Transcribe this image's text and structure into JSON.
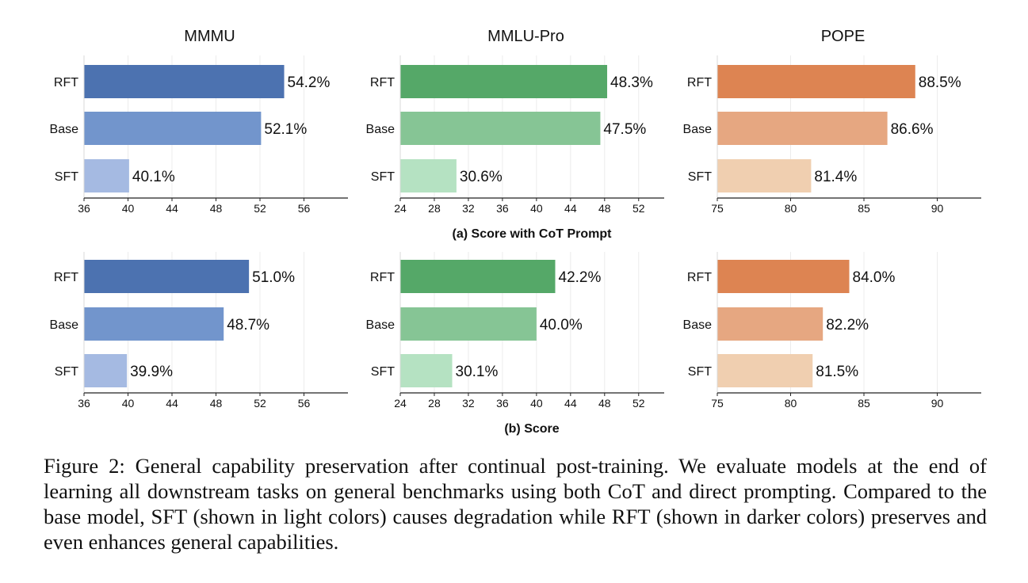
{
  "chart_data": [
    {
      "type": "bar",
      "orientation": "horizontal",
      "row": 0,
      "col": 0,
      "title": "MMMU",
      "categories": [
        "RFT",
        "Base",
        "SFT"
      ],
      "values": [
        54.2,
        52.1,
        40.1
      ],
      "value_labels": [
        "54.2%",
        "52.1%",
        "40.1%"
      ],
      "colors": [
        "#4c72b0",
        "#7295cc",
        "#a5bae2"
      ],
      "xlim": [
        36,
        60
      ],
      "xticks": [
        36,
        40,
        44,
        48,
        52,
        56
      ],
      "grid": "vertical"
    },
    {
      "type": "bar",
      "orientation": "horizontal",
      "row": 0,
      "col": 1,
      "title": "MMLU-Pro",
      "categories": [
        "RFT",
        "Base",
        "SFT"
      ],
      "values": [
        48.3,
        47.5,
        30.6
      ],
      "value_labels": [
        "48.3%",
        "47.5%",
        "30.6%"
      ],
      "colors": [
        "#55a868",
        "#86c595",
        "#b5e2c2"
      ],
      "xlim": [
        24,
        55
      ],
      "xticks": [
        24,
        28,
        32,
        36,
        40,
        44,
        48,
        52
      ],
      "grid": "vertical"
    },
    {
      "type": "bar",
      "orientation": "horizontal",
      "row": 0,
      "col": 2,
      "title": "POPE",
      "categories": [
        "RFT",
        "Base",
        "SFT"
      ],
      "values": [
        88.5,
        86.6,
        81.4
      ],
      "value_labels": [
        "88.5%",
        "86.6%",
        "81.4%"
      ],
      "colors": [
        "#dd8452",
        "#e6a781",
        "#f0cfb0"
      ],
      "xlim": [
        75,
        93
      ],
      "xticks": [
        75,
        80,
        85,
        90
      ],
      "grid": "vertical"
    },
    {
      "type": "bar",
      "orientation": "horizontal",
      "row": 1,
      "col": 0,
      "title": "",
      "categories": [
        "RFT",
        "Base",
        "SFT"
      ],
      "values": [
        51.0,
        48.7,
        39.9
      ],
      "value_labels": [
        "51.0%",
        "48.7%",
        "39.9%"
      ],
      "colors": [
        "#4c72b0",
        "#7295cc",
        "#a5bae2"
      ],
      "xlim": [
        36,
        60
      ],
      "xticks": [
        36,
        40,
        44,
        48,
        52,
        56
      ],
      "grid": "vertical"
    },
    {
      "type": "bar",
      "orientation": "horizontal",
      "row": 1,
      "col": 1,
      "title": "",
      "categories": [
        "RFT",
        "Base",
        "SFT"
      ],
      "values": [
        42.2,
        40.0,
        30.1
      ],
      "value_labels": [
        "42.2%",
        "40.0%",
        "30.1%"
      ],
      "colors": [
        "#55a868",
        "#86c595",
        "#b5e2c2"
      ],
      "xlim": [
        24,
        55
      ],
      "xticks": [
        24,
        28,
        32,
        36,
        40,
        44,
        48,
        52
      ],
      "grid": "vertical"
    },
    {
      "type": "bar",
      "orientation": "horizontal",
      "row": 1,
      "col": 2,
      "title": "",
      "categories": [
        "RFT",
        "Base",
        "SFT"
      ],
      "values": [
        84.0,
        82.2,
        81.5
      ],
      "value_labels": [
        "84.0%",
        "82.2%",
        "81.5%"
      ],
      "colors": [
        "#dd8452",
        "#e6a781",
        "#f0cfb0"
      ],
      "xlim": [
        75,
        93
      ],
      "xticks": [
        75,
        80,
        85,
        90
      ],
      "grid": "vertical"
    }
  ],
  "row_labels": [
    "(a) Score with CoT Prompt",
    "(b) Score"
  ],
  "caption": "Figure 2: General capability preservation after continual post-training. We evaluate models at the end of learning all downstream tasks on general benchmarks using both CoT and direct prompting. Compared to the base model, SFT (shown in light colors) causes degradation while RFT (shown in darker colors) preserves and even enhances general capabilities."
}
